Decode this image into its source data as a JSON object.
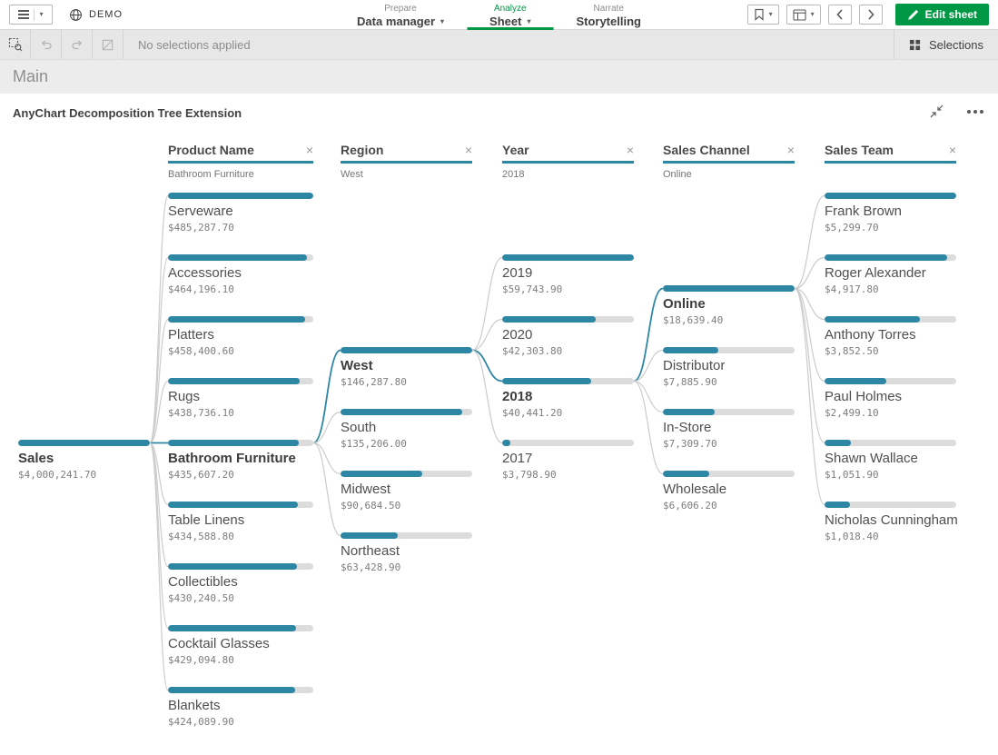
{
  "topbar": {
    "brand": "DEMO",
    "nav": [
      {
        "section": "Prepare",
        "label": "Data manager"
      },
      {
        "section": "Analyze",
        "label": "Sheet"
      },
      {
        "section": "Narrate",
        "label": "Storytelling"
      }
    ],
    "edit_sheet_label": "Edit sheet"
  },
  "selections_bar": {
    "status": "No selections applied",
    "selections_label": "Selections"
  },
  "sheet_title": "Main",
  "chart_title": "AnyChart Decomposition Tree Extension",
  "icons": {
    "caret_down": "▾",
    "remove_column": "×"
  },
  "colors": {
    "accent_teal": "#2e86a5",
    "brand_green": "#009845",
    "bar_track": "#dcdcdc",
    "link_gray": "#cccccc"
  },
  "chart_data": {
    "type": "decomposition-tree",
    "title": "AnyChart Decomposition Tree Extension",
    "measure": "Sales",
    "root": {
      "label": "Sales",
      "value": 4000241.7,
      "value_display": "$4,000,241.70"
    },
    "columns": [
      {
        "header": "Product Name",
        "selected_value": "Bathroom Furniture",
        "nodes": [
          {
            "label": "Serveware",
            "value": 485287.7,
            "value_display": "$485,287.70"
          },
          {
            "label": "Accessories",
            "value": 464196.1,
            "value_display": "$464,196.10"
          },
          {
            "label": "Platters",
            "value": 458400.6,
            "value_display": "$458,400.60"
          },
          {
            "label": "Rugs",
            "value": 438736.1,
            "value_display": "$438,736.10"
          },
          {
            "label": "Bathroom Furniture",
            "value": 435607.2,
            "value_display": "$435,607.20",
            "selected": true
          },
          {
            "label": "Table Linens",
            "value": 434588.8,
            "value_display": "$434,588.80"
          },
          {
            "label": "Collectibles",
            "value": 430240.5,
            "value_display": "$430,240.50"
          },
          {
            "label": "Cocktail Glasses",
            "value": 429094.8,
            "value_display": "$429,094.80"
          },
          {
            "label": "Blankets",
            "value": 424089.9,
            "value_display": "$424,089.90"
          }
        ]
      },
      {
        "header": "Region",
        "selected_value": "West",
        "nodes": [
          {
            "label": "West",
            "value": 146287.8,
            "value_display": "$146,287.80",
            "selected": true
          },
          {
            "label": "South",
            "value": 135206.0,
            "value_display": "$135,206.00"
          },
          {
            "label": "Midwest",
            "value": 90684.5,
            "value_display": "$90,684.50"
          },
          {
            "label": "Northeast",
            "value": 63428.9,
            "value_display": "$63,428.90"
          }
        ]
      },
      {
        "header": "Year",
        "selected_value": "2018",
        "nodes": [
          {
            "label": "2019",
            "value": 59743.9,
            "value_display": "$59,743.90"
          },
          {
            "label": "2020",
            "value": 42303.8,
            "value_display": "$42,303.80"
          },
          {
            "label": "2018",
            "value": 40441.2,
            "value_display": "$40,441.20",
            "selected": true
          },
          {
            "label": "2017",
            "value": 3798.9,
            "value_display": "$3,798.90"
          }
        ]
      },
      {
        "header": "Sales Channel",
        "selected_value": "Online",
        "nodes": [
          {
            "label": "Online",
            "value": 18639.4,
            "value_display": "$18,639.40",
            "selected": true
          },
          {
            "label": "Distributor",
            "value": 7885.9,
            "value_display": "$7,885.90"
          },
          {
            "label": "In-Store",
            "value": 7309.7,
            "value_display": "$7,309.70"
          },
          {
            "label": "Wholesale",
            "value": 6606.2,
            "value_display": "$6,606.20"
          }
        ]
      },
      {
        "header": "Sales Team",
        "selected_value": "",
        "nodes": [
          {
            "label": "Frank Brown",
            "value": 5299.7,
            "value_display": "$5,299.70"
          },
          {
            "label": "Roger Alexander",
            "value": 4917.8,
            "value_display": "$4,917.80"
          },
          {
            "label": "Anthony Torres",
            "value": 3852.5,
            "value_display": "$3,852.50"
          },
          {
            "label": "Paul Holmes",
            "value": 2499.1,
            "value_display": "$2,499.10"
          },
          {
            "label": "Shawn Wallace",
            "value": 1051.9,
            "value_display": "$1,051.90"
          },
          {
            "label": "Nicholas Cunningham",
            "value": 1018.4,
            "value_display": "$1,018.40"
          }
        ]
      }
    ]
  }
}
